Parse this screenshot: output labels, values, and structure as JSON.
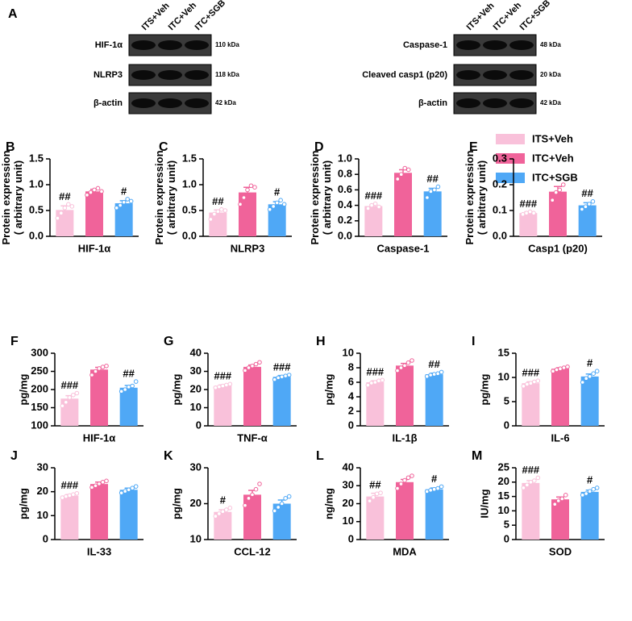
{
  "panel_a": {
    "letter": "A",
    "blots": [
      {
        "lanes": [
          "ITS+Veh",
          "ITC+Veh",
          "ITC+SGB"
        ],
        "rows": [
          {
            "label": "HIF-1α",
            "size": "110 kDa"
          },
          {
            "label": "NLRP3",
            "size": "118 kDa"
          },
          {
            "label": "β-actin",
            "size": "42 kDa"
          }
        ]
      },
      {
        "lanes": [
          "ITS+Veh",
          "ITC+Veh",
          "ITC+SGB"
        ],
        "rows": [
          {
            "label": "Caspase-1",
            "size": "48 kDa"
          },
          {
            "label": "Cleaved casp1 (p20)",
            "size": "20 kDa"
          },
          {
            "label": "β-actin",
            "size": "42 kDa"
          }
        ]
      }
    ]
  },
  "legend": [
    {
      "name": "ITS+Veh",
      "color": "#f9c1da"
    },
    {
      "name": "ITC+Veh",
      "color": "#f0639a"
    },
    {
      "name": "ITC+SGB",
      "color": "#4fa8f6"
    }
  ],
  "chart_data": [
    {
      "type": "bar",
      "panel": "B",
      "xlabel": "HIF-1α",
      "ylabel": [
        "Protein expression",
        "( arbitrary unit)"
      ],
      "values": [
        0.51,
        0.87,
        0.64
      ],
      "errors": [
        0.08,
        0.04,
        0.05
      ],
      "points": [
        [
          0.35,
          0.45,
          0.55,
          0.62,
          0.58
        ],
        [
          0.8,
          0.85,
          0.9,
          0.93,
          0.87
        ],
        [
          0.55,
          0.6,
          0.66,
          0.72,
          0.68
        ]
      ],
      "annotations": [
        "##",
        null,
        "#"
      ],
      "ylim": [
        0,
        1.5
      ],
      "yticks": [
        {
          "value": 0,
          "label": "0.0"
        },
        0.5,
        {
          "value": 1,
          "label": "1.0"
        },
        1.5
      ]
    },
    {
      "type": "bar",
      "panel": "C",
      "xlabel": "NLRP3",
      "ylabel": [
        "Protein expression",
        "( arbitrary unit)"
      ],
      "values": [
        0.46,
        0.85,
        0.62
      ],
      "errors": [
        0.05,
        0.1,
        0.05
      ],
      "points": [
        [
          0.33,
          0.43,
          0.48,
          0.52,
          0.5
        ],
        [
          0.62,
          0.75,
          0.9,
          0.98,
          0.95
        ],
        [
          0.52,
          0.58,
          0.65,
          0.7,
          0.62
        ]
      ],
      "annotations": [
        "##",
        null,
        "#"
      ],
      "ylim": [
        0,
        1.5
      ],
      "yticks": [
        {
          "value": 0,
          "label": "0.0"
        },
        0.5,
        {
          "value": 1,
          "label": "1.0"
        },
        1.5
      ]
    },
    {
      "type": "bar",
      "panel": "D",
      "xlabel": "Caspase-1",
      "ylabel": [
        "Protein expression",
        "( arbitrary unit)"
      ],
      "values": [
        0.39,
        0.82,
        0.58
      ],
      "errors": [
        0.02,
        0.04,
        0.04
      ],
      "points": [
        [
          0.36,
          0.4,
          0.42,
          0.38
        ],
        [
          0.74,
          0.8,
          0.88,
          0.86
        ],
        [
          0.5,
          0.58,
          0.6,
          0.64
        ]
      ],
      "annotations": [
        "###",
        null,
        "##"
      ],
      "ylim": [
        0,
        1
      ],
      "yticks": [
        {
          "value": 0,
          "label": "0.0"
        },
        0.2,
        0.4,
        0.6,
        0.8,
        {
          "value": 1,
          "label": "1.0"
        }
      ]
    },
    {
      "type": "bar",
      "panel": "E",
      "xlabel": "Casp1 (p20)",
      "ylabel": [
        "Protein expression",
        "( arbitrary unit)"
      ],
      "values": [
        0.09,
        0.173,
        0.12
      ],
      "errors": [
        0.005,
        0.02,
        0.01
      ],
      "points": [
        [
          0.085,
          0.09,
          0.095,
          0.09
        ],
        [
          0.14,
          0.17,
          0.18,
          0.2
        ],
        [
          0.105,
          0.115,
          0.125,
          0.135
        ]
      ],
      "annotations": [
        "###",
        null,
        "##"
      ],
      "ylim": [
        0,
        0.3
      ],
      "yticks": [
        {
          "value": 0,
          "label": "0.0"
        },
        0.1,
        0.2,
        0.3
      ]
    },
    {
      "type": "bar",
      "panel": "F",
      "xlabel": "HIF-1α",
      "ylabel": [
        "pg/mg"
      ],
      "values": [
        175,
        255,
        205
      ],
      "errors": [
        8,
        6,
        6
      ],
      "points": [
        [
          155,
          165,
          178,
          185,
          190
        ],
        [
          240,
          250,
          258,
          262,
          265
        ],
        [
          195,
          200,
          207,
          210,
          222
        ]
      ],
      "annotations": [
        "###",
        null,
        "##"
      ],
      "ylim": [
        100,
        300
      ],
      "yticks": [
        100,
        150,
        200,
        250,
        300
      ]
    },
    {
      "type": "bar",
      "panel": "G",
      "xlabel": "TNF-α",
      "ylabel": [
        "pg/mg"
      ],
      "values": [
        22,
        32.5,
        27
      ],
      "errors": [
        0.5,
        1,
        0.7
      ],
      "points": [
        [
          21,
          21.5,
          22,
          22.5,
          23
        ],
        [
          30.5,
          32,
          33,
          34,
          35
        ],
        [
          25.5,
          26.5,
          27,
          27.5,
          28
        ]
      ],
      "annotations": [
        "###",
        null,
        "###"
      ],
      "ylim": [
        0,
        40
      ],
      "yticks": [
        0,
        10,
        20,
        30,
        40
      ]
    },
    {
      "type": "bar",
      "panel": "H",
      "xlabel": "IL-1β",
      "ylabel": [
        "pg/mg"
      ],
      "values": [
        6,
        8.3,
        7.1
      ],
      "errors": [
        0.2,
        0.3,
        0.15
      ],
      "points": [
        [
          5.6,
          5.9,
          6,
          6.2,
          6.3
        ],
        [
          7.6,
          8,
          8.3,
          8.7,
          9
        ],
        [
          6.8,
          7,
          7.1,
          7.2,
          7.4
        ]
      ],
      "annotations": [
        "###",
        null,
        "##"
      ],
      "ylim": [
        0,
        10
      ],
      "yticks": [
        0,
        2,
        4,
        6,
        8,
        10
      ]
    },
    {
      "type": "bar",
      "panel": "I",
      "xlabel": "IL-6",
      "ylabel": [
        "pg/mg"
      ],
      "values": [
        8.8,
        11.8,
        10.2
      ],
      "errors": [
        0.3,
        0.2,
        0.5
      ],
      "points": [
        [
          8.2,
          8.6,
          8.8,
          9.1,
          9.3
        ],
        [
          11.3,
          11.6,
          11.8,
          12,
          12.2
        ],
        [
          9,
          9.8,
          10.2,
          10.8,
          11.3
        ]
      ],
      "annotations": [
        "###",
        null,
        "#"
      ],
      "ylim": [
        0,
        15
      ],
      "yticks": [
        0,
        5,
        10,
        15
      ]
    },
    {
      "type": "bar",
      "panel": "J",
      "xlabel": "IL-33",
      "ylabel": [
        "pg/mg"
      ],
      "values": [
        18.3,
        23.2,
        20.8
      ],
      "errors": [
        0.5,
        0.8,
        0.7
      ],
      "points": [
        [
          17.5,
          18,
          18.4,
          18.8,
          19.3
        ],
        [
          21.8,
          22.5,
          23.3,
          24,
          24.5
        ],
        [
          19.5,
          20.2,
          20.8,
          21.5,
          22.2
        ]
      ],
      "annotations": [
        "###",
        null,
        null
      ],
      "ylim": [
        0,
        30
      ],
      "yticks": [
        0,
        10,
        20,
        30
      ]
    },
    {
      "type": "bar",
      "panel": "K",
      "xlabel": "CCL-12",
      "ylabel": [
        "pg/mg"
      ],
      "values": [
        17.7,
        22.5,
        20
      ],
      "errors": [
        0.6,
        1.2,
        1
      ],
      "points": [
        [
          16.5,
          17.2,
          17.8,
          18.3,
          18.8
        ],
        [
          19.5,
          21.5,
          22.5,
          24,
          25.5
        ],
        [
          18,
          19,
          20,
          21.5,
          22
        ]
      ],
      "annotations": [
        "#",
        null,
        null
      ],
      "ylim": [
        10,
        30
      ],
      "yticks": [
        10,
        20,
        30
      ]
    },
    {
      "type": "bar",
      "panel": "L",
      "xlabel": "MDA",
      "ylabel": [
        "ng/mg"
      ],
      "values": [
        24,
        32,
        28
      ],
      "errors": [
        1.8,
        1.5,
        0.7
      ],
      "points": [
        [
          21.5,
          23.5,
          25.5,
          26
        ],
        [
          28.5,
          31,
          33,
          34.5,
          35.5
        ],
        [
          26.8,
          27.5,
          28,
          28.5,
          29.5
        ]
      ],
      "annotations": [
        "##",
        null,
        "#"
      ],
      "ylim": [
        0,
        40
      ],
      "yticks": [
        0,
        10,
        20,
        30,
        40
      ]
    },
    {
      "type": "bar",
      "panel": "M",
      "xlabel": "SOD",
      "ylabel": [
        "IU/mg"
      ],
      "values": [
        19.7,
        14,
        16.6
      ],
      "errors": [
        0.8,
        0.8,
        0.6
      ],
      "points": [
        [
          18,
          19,
          20,
          20.5,
          21.5
        ],
        [
          12.3,
          13.5,
          14.2,
          15.5
        ],
        [
          15.5,
          16,
          16.8,
          17.5,
          18
        ]
      ],
      "annotations": [
        "###",
        null,
        "#"
      ],
      "ylim": [
        0,
        25
      ],
      "yticks": [
        0,
        5,
        10,
        15,
        20,
        25
      ]
    }
  ]
}
